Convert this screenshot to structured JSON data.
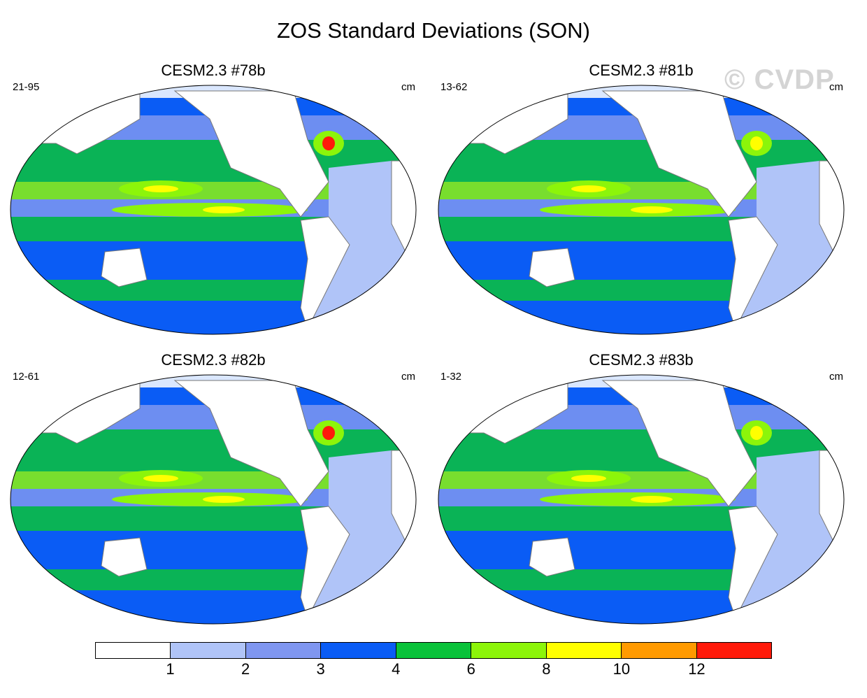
{
  "title": "ZOS Standard Deviations (SON)",
  "watermark": "© CVDP",
  "panels": [
    {
      "title": "CESM2.3 #78b",
      "years": "21-95",
      "units": "cm"
    },
    {
      "title": "CESM2.3 #81b",
      "years": "13-62",
      "units": "cm"
    },
    {
      "title": "CESM2.3 #82b",
      "years": "12-61",
      "units": "cm"
    },
    {
      "title": "CESM2.3 #83b",
      "years": "1-32",
      "units": "cm"
    }
  ],
  "colorbar": {
    "levels": [
      "1",
      "2",
      "3",
      "4",
      "6",
      "8",
      "10",
      "12"
    ],
    "colors": [
      "#ffffff",
      "#b0c4f8",
      "#7f96f0",
      "#0a5cf5",
      "#0ac23a",
      "#8cf50a",
      "#ffff00",
      "#ff9a00",
      "#ff1a0a"
    ]
  },
  "chart_data": {
    "type": "heatmap",
    "variable": "ZOS",
    "season": "SON",
    "statistic": "Standard Deviations",
    "units": "cm",
    "levels": [
      1,
      2,
      3,
      4,
      6,
      8,
      10,
      12
    ]
  }
}
